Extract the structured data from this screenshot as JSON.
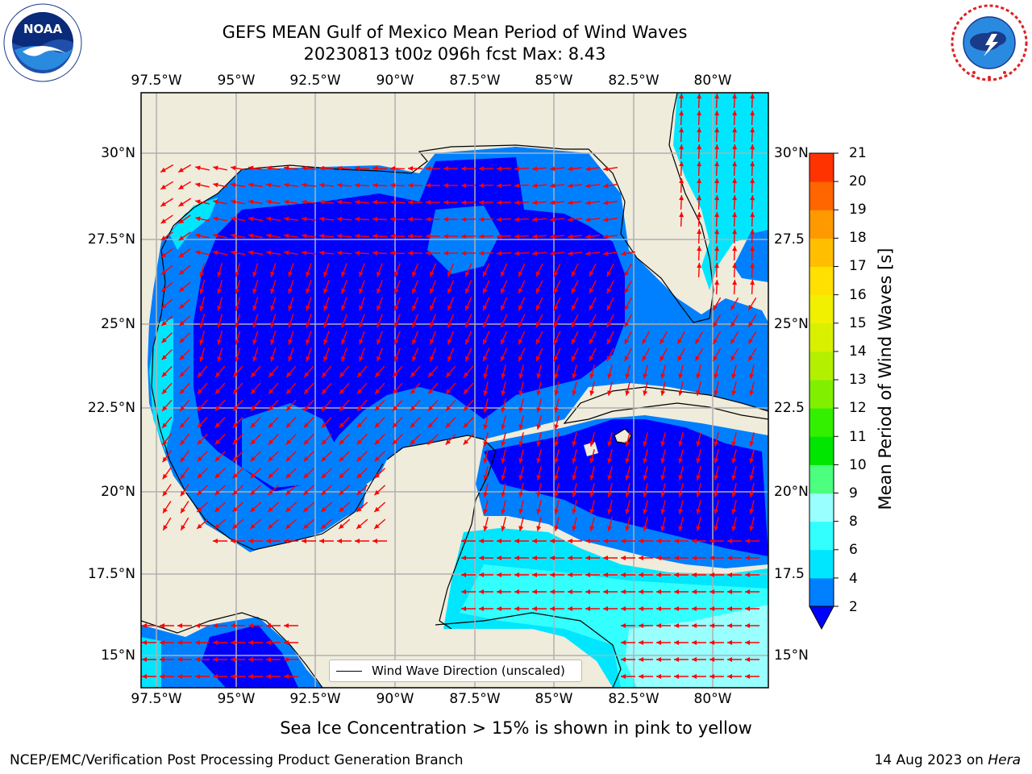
{
  "header": {
    "title_line1": "GEFS MEAN Gulf of Mexico Mean Period of Wind Waves",
    "title_line2": "20230813 t00z 096h fcst   Max: 8.43"
  },
  "logos": {
    "noaa": {
      "text": "NOAA",
      "ring_text": "NATIONAL OCEANIC AND ATMOSPHERIC ADMINISTRATION · U.S. DEPARTMENT OF COMMERCE"
    },
    "nws": {
      "ring_text": "NATIONAL WEATHER SERVICE"
    }
  },
  "map": {
    "lon_ticks_top": [
      "97.5°W",
      "95°W",
      "92.5°W",
      "90°W",
      "87.5°W",
      "85°W",
      "82.5°W",
      "80°W"
    ],
    "lon_ticks_bottom": [
      "97.5°W",
      "95°W",
      "92.5°W",
      "90°W",
      "87.5°W",
      "85°W",
      "82.5°W",
      "80°W"
    ],
    "lat_ticks_left": [
      "30°N",
      "27.5°N",
      "25°N",
      "22.5°N",
      "20°N",
      "17.5°N",
      "15°N"
    ],
    "lat_ticks_right": [
      "30°N",
      "27.5",
      "25°N",
      "22.5",
      "20°N",
      "17.5",
      "15°N"
    ],
    "land_color": "#efecdc",
    "arrow_color": "#ff0000",
    "gridline_color": "#b0b0b0",
    "legend_label": "Wind Wave Direction (unscaled)"
  },
  "colorbar": {
    "label": "Mean Period of Wind Waves [s]",
    "tick_labels": [
      "21",
      "20",
      "19",
      "18",
      "17",
      "16",
      "15",
      "14",
      "13",
      "12",
      "11",
      "10",
      "9",
      "8",
      "6",
      "4",
      "2"
    ],
    "levels": [
      2,
      4,
      6,
      8,
      9,
      10,
      11,
      12,
      13,
      14,
      15,
      16,
      17,
      18,
      19,
      20,
      21
    ],
    "colors": [
      "#0080ff",
      "#00e6ff",
      "#33ffff",
      "#99ffff",
      "#4cff7f",
      "#00e600",
      "#33f000",
      "#80f000",
      "#b3f000",
      "#d9f000",
      "#f0f000",
      "#ffe000",
      "#ffbf00",
      "#ff9900",
      "#ff6600",
      "#ff3300"
    ],
    "under_color": "#0000ff"
  },
  "caption": "Sea Ice Concentration > 15% is shown in pink to yellow",
  "footer": {
    "left": "NCEP/EMC/Verification Post Processing Product Generation Branch",
    "right_prefix": "14 Aug 2023 on ",
    "right_host": "Hera"
  }
}
